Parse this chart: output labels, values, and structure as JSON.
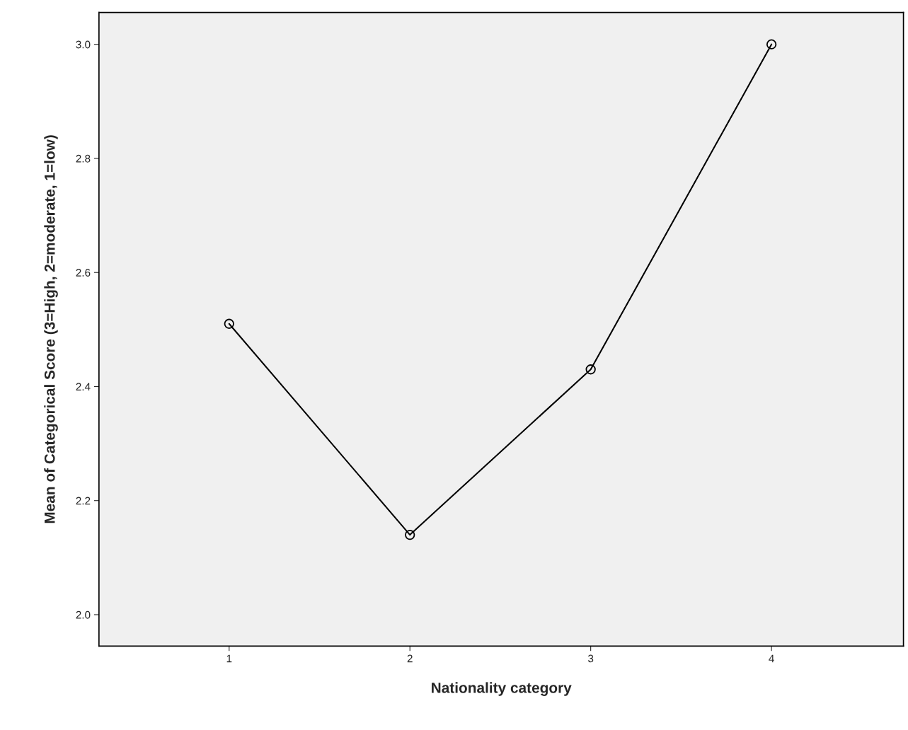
{
  "chart_data": {
    "type": "line",
    "xlabel": "Nationality category",
    "ylabel": "Mean of Categorical Score (3=High, 2=moderate, 1=low)",
    "categories": [
      "1",
      "2",
      "3",
      "4"
    ],
    "series": [
      {
        "color": "#000000",
        "values": [
          2.51,
          2.14,
          2.43,
          3.0
        ]
      }
    ],
    "ylim": [
      1.945,
      3.056
    ],
    "yticks": [
      {
        "value": 2.0,
        "label": "2.0"
      },
      {
        "value": 2.2,
        "label": "2.2"
      },
      {
        "value": 2.4,
        "label": "2.4"
      },
      {
        "value": 2.6,
        "label": "2.6"
      },
      {
        "value": 2.8,
        "label": "2.8"
      },
      {
        "value": 3.0,
        "label": "3.0"
      }
    ],
    "marker": "circle",
    "line_style": "solid",
    "grid": false
  }
}
